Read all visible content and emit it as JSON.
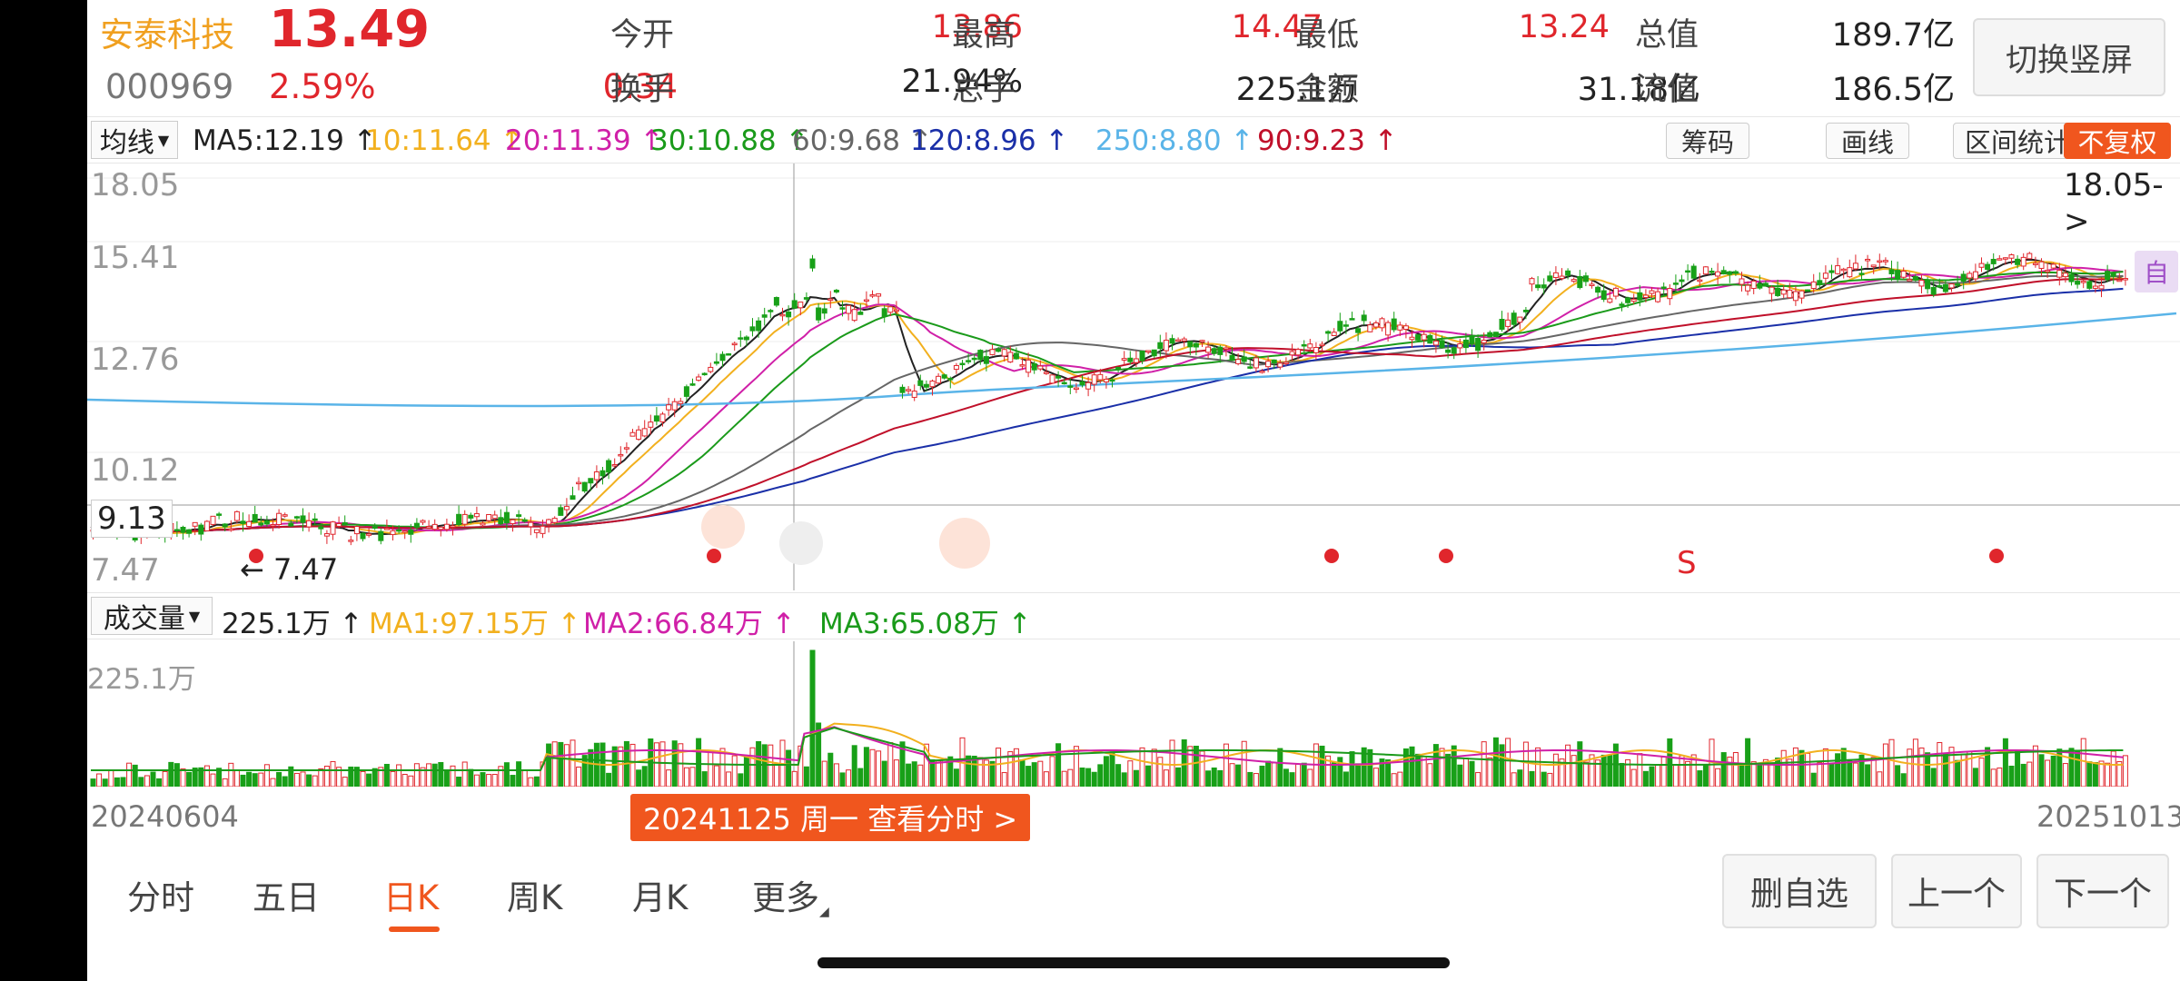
{
  "quote": {
    "name": "安泰科技",
    "price": "13.49",
    "code": "000969",
    "change_pct": "2.59%",
    "change": "0.34",
    "fields": [
      {
        "label": "今开",
        "value": "13.86",
        "red": true
      },
      {
        "label": "最高",
        "value": "14.47",
        "red": true
      },
      {
        "label": "最低",
        "value": "13.24",
        "red": true
      },
      {
        "label": "总值",
        "value": "189.7亿",
        "red": false
      },
      {
        "label": "换手",
        "value": "21.94%",
        "red": false
      },
      {
        "label": "总手",
        "value": "225.1万",
        "red": false
      },
      {
        "label": "金额",
        "value": "31.18亿",
        "red": false
      },
      {
        "label": "流值",
        "value": "186.5亿",
        "red": false
      }
    ],
    "switch_label": "切换竖屏"
  },
  "ma_bar": {
    "select_label": "均线",
    "items": [
      {
        "text": "MA5:12.19 ↑",
        "color": "#222222"
      },
      {
        "text": "10:11.64 ↑",
        "color": "#f2b01e"
      },
      {
        "text": "20:11.39 ↑",
        "color": "#d020a8"
      },
      {
        "text": "30:10.88 ↑",
        "color": "#1a9a1a"
      },
      {
        "text": "60:9.68 ↑",
        "color": "#666666"
      },
      {
        "text": "120:8.96 ↑",
        "color": "#1a2fa8"
      },
      {
        "text": "250:8.80 ↑",
        "color": "#5ab4e8"
      },
      {
        "text": "90:9.23 ↑",
        "color": "#c0102a"
      }
    ],
    "tools": [
      "筹码",
      "画线",
      "区间统计",
      "不复权"
    ]
  },
  "kline": {
    "price_labels": [
      "18.05",
      "15.41",
      "12.76",
      "10.12",
      "9.13",
      "7.47"
    ],
    "max_label": "18.05->",
    "min_label": "← 7.47",
    "signal_label": "S",
    "side_label": "自"
  },
  "volume_bar": {
    "select_label": "成交量",
    "items": [
      {
        "text": "225.1万 ↑",
        "color": "#222222"
      },
      {
        "text": "MA1:97.15万 ↑",
        "color": "#f2b01e"
      },
      {
        "text": "MA2:66.84万 ↑",
        "color": "#d020a8"
      },
      {
        "text": "MA3:65.08万 ↑",
        "color": "#1a9a1a"
      }
    ],
    "max_label": "225.1万"
  },
  "dates": {
    "start": "20240604",
    "end": "20251013",
    "cursor_tip": "20241125 周一  查看分时 >"
  },
  "tabs": [
    "分时",
    "五日",
    "日K",
    "周K",
    "月K",
    "更多"
  ],
  "nav_buttons": [
    "删自选",
    "上一个",
    "下一个"
  ],
  "colors": {
    "up": "#e0262c",
    "down": "#18a018",
    "accent": "#f0561e"
  }
}
